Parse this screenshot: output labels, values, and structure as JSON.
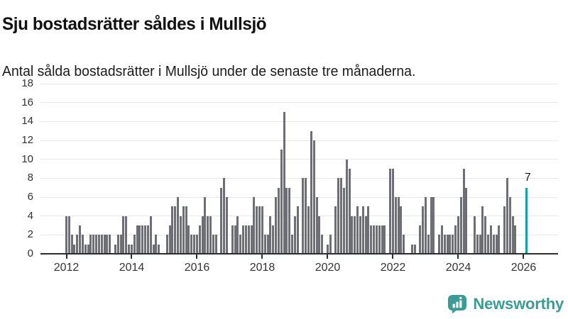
{
  "header": {
    "title": "Sju bostadsrätter såldes i Mullsjö",
    "subtitle": "Antal sålda bostadsrätter i Mullsjö under de senaste tre månaderna."
  },
  "chart_data": {
    "type": "bar",
    "title": "Sju bostadsrätter såldes i Mullsjö",
    "subtitle": "Antal sålda bostadsrätter i Mullsjö under de senaste tre månaderna.",
    "xlabel": "",
    "ylabel": "",
    "ylim": [
      0,
      18
    ],
    "y_ticks": [
      0,
      2,
      4,
      6,
      8,
      10,
      12,
      14,
      16,
      18
    ],
    "x_tick_labels": [
      "2012",
      "2014",
      "2016",
      "2018",
      "2020",
      "2022",
      "2024",
      "2026"
    ],
    "x_start_year": 2012,
    "points_per_year": 12,
    "grid": true,
    "legend": "none",
    "bar_color": "#6e6e76",
    "highlight_color": "#00a3a6",
    "highlight_index": 169,
    "highlight_value": 7,
    "highlight_label": "7",
    "values": [
      4,
      4,
      2,
      1,
      2,
      3,
      2,
      1,
      1,
      2,
      2,
      2,
      2,
      2,
      2,
      2,
      2,
      0,
      1,
      2,
      2,
      4,
      4,
      1,
      1,
      2,
      3,
      3,
      3,
      3,
      3,
      4,
      1,
      2,
      1,
      0,
      0,
      2,
      3,
      5,
      5,
      6,
      4,
      5,
      5,
      3,
      2,
      2,
      2,
      3,
      4,
      6,
      4,
      4,
      2,
      2,
      0,
      7,
      8,
      6,
      0,
      3,
      3,
      4,
      2,
      3,
      3,
      3,
      3,
      6,
      5,
      5,
      5,
      2,
      2,
      4,
      3,
      6,
      7,
      11,
      15,
      7,
      7,
      2,
      4,
      5,
      0,
      8,
      8,
      5,
      13,
      12,
      6,
      4,
      2,
      0,
      1,
      2,
      0,
      5,
      8,
      8,
      7,
      10,
      9,
      4,
      4,
      5,
      4,
      5,
      4,
      5,
      3,
      3,
      3,
      3,
      3,
      3,
      0,
      9,
      9,
      6,
      6,
      5,
      2,
      0,
      0,
      1,
      1,
      0,
      3,
      5,
      6,
      2,
      6,
      6,
      0,
      2,
      3,
      2,
      2,
      2,
      2,
      3,
      4,
      6,
      9,
      7,
      0,
      0,
      4,
      2,
      2,
      5,
      4,
      2,
      3,
      2,
      2,
      3,
      0,
      5,
      8,
      6,
      4,
      3,
      0,
      0,
      0,
      7
    ]
  },
  "footer": {
    "brand": "Newsworthy",
    "brand_color": "#3d9b95"
  }
}
